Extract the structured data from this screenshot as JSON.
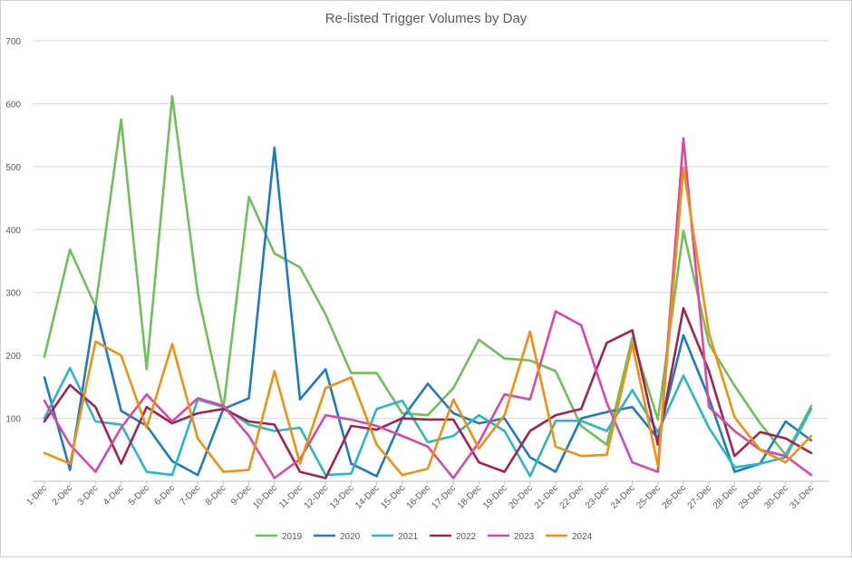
{
  "chart_data": {
    "type": "line",
    "title": "Re-listed Trigger Volumes by Day",
    "xlabel": "",
    "ylabel": "",
    "ylim": [
      0,
      700
    ],
    "yticks": [
      100,
      200,
      300,
      400,
      500,
      600,
      700
    ],
    "grid": true,
    "legend_position": "bottom",
    "categories": [
      "1-Dec",
      "2-Dec",
      "3-Dec",
      "4-Dec",
      "5-Dec",
      "6-Dec",
      "7-Dec",
      "8-Dec",
      "9-Dec",
      "10-Dec",
      "11-Dec",
      "12-Dec",
      "13-Dec",
      "14-Dec",
      "15-Dec",
      "16-Dec",
      "17-Dec",
      "18-Dec",
      "19-Dec",
      "20-Dec",
      "21-Dec",
      "22-Dec",
      "23-Dec",
      "24-Dec",
      "25-Dec",
      "26-Dec",
      "27-Dec",
      "28-Dec",
      "29-Dec",
      "30-Dec",
      "31-Dec"
    ],
    "series": [
      {
        "name": "2019",
        "color": "#70c05a",
        "values": [
          198,
          368,
          278,
          575,
          178,
          612,
          298,
          115,
          452,
          362,
          340,
          265,
          172,
          172,
          108,
          105,
          148,
          225,
          195,
          192,
          175,
          88,
          58,
          228,
          98,
          398,
          218,
          152,
          92,
          42,
          120
        ]
      },
      {
        "name": "2020",
        "color": "#1f7bc0",
        "values": [
          165,
          18,
          278,
          112,
          88,
          32,
          10,
          115,
          132,
          530,
          130,
          178,
          28,
          8,
          100,
          155,
          108,
          92,
          100,
          38,
          15,
          100,
          110,
          118,
          68,
          232,
          132,
          15,
          28,
          95,
          65
        ]
      },
      {
        "name": "2021",
        "color": "#2ab6c6",
        "values": [
          100,
          180,
          95,
          90,
          15,
          10,
          130,
          118,
          90,
          80,
          85,
          10,
          12,
          115,
          128,
          62,
          72,
          105,
          80,
          8,
          96,
          96,
          80,
          145,
          78,
          168,
          85,
          22,
          28,
          38,
          115
        ]
      },
      {
        "name": "2022",
        "color": "#a3234f",
        "values": [
          95,
          153,
          118,
          28,
          118,
          92,
          108,
          115,
          95,
          90,
          15,
          5,
          88,
          82,
          100,
          98,
          98,
          30,
          15,
          80,
          105,
          115,
          220,
          240,
          58,
          275,
          175,
          40,
          78,
          68,
          45
        ]
      },
      {
        "name": "2023",
        "color": "#d64aa6",
        "values": [
          128,
          58,
          15,
          85,
          138,
          95,
          132,
          120,
          72,
          5,
          35,
          105,
          98,
          88,
          72,
          55,
          5,
          62,
          138,
          130,
          270,
          248,
          125,
          30,
          15,
          545,
          118,
          80,
          50,
          40,
          10
        ]
      },
      {
        "name": "2024",
        "color": "#f0900f",
        "values": [
          45,
          28,
          222,
          200,
          85,
          218,
          68,
          15,
          18,
          175,
          28,
          148,
          165,
          58,
          10,
          20,
          130,
          52,
          105,
          238,
          55,
          40,
          42,
          218,
          25,
          498,
          235,
          102,
          50,
          30,
          72
        ]
      }
    ]
  }
}
